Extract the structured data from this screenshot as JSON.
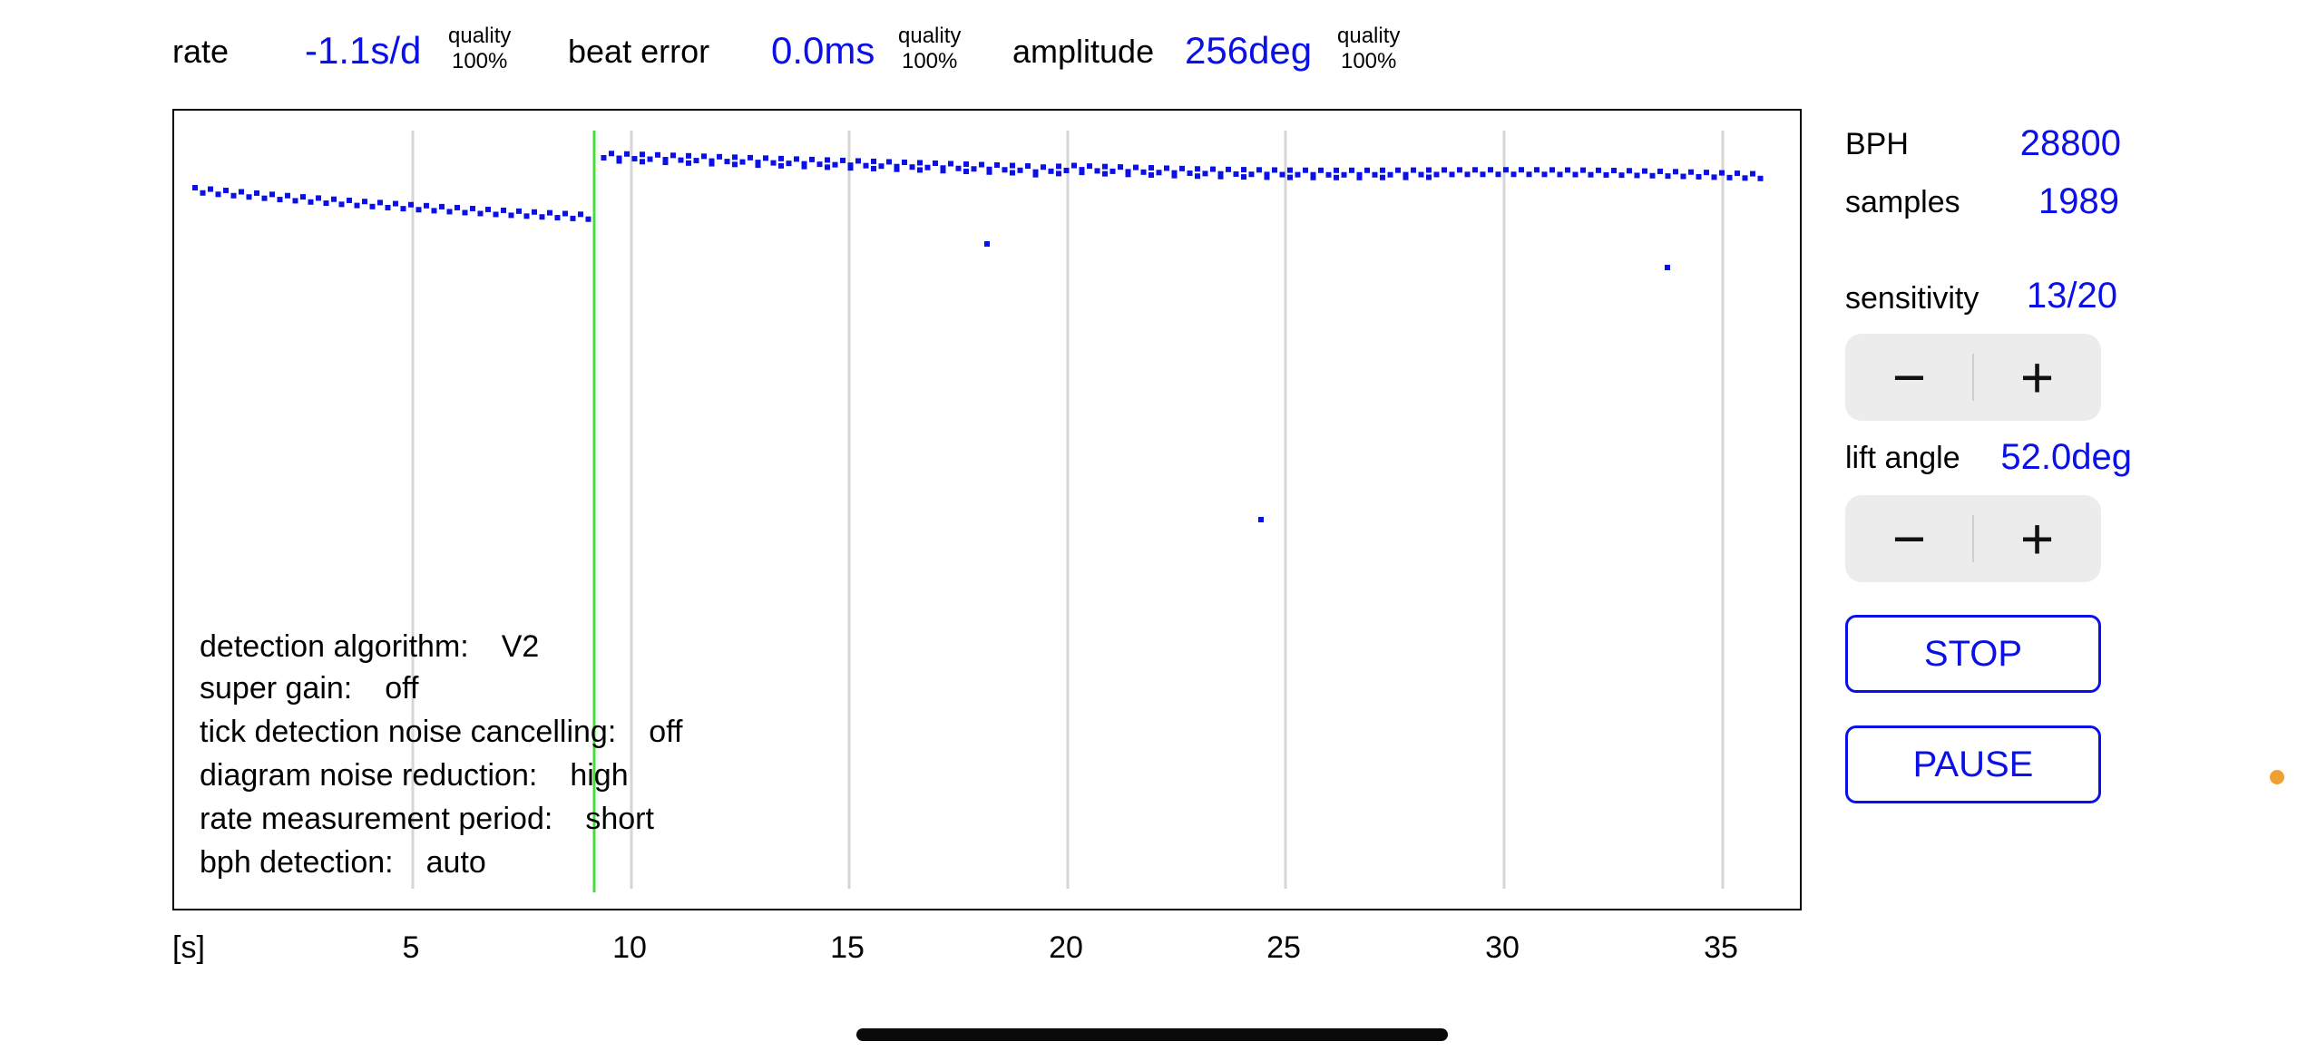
{
  "stats": {
    "rate": {
      "label": "rate",
      "value": "-1.1s/d",
      "quality_label": "quality",
      "quality_value": "100%"
    },
    "beat_error": {
      "label": "beat error",
      "value": "0.0ms",
      "quality_label": "quality",
      "quality_value": "100%"
    },
    "amplitude": {
      "label": "amplitude",
      "value": "256deg",
      "quality_label": "quality",
      "quality_value": "100%"
    }
  },
  "chart": {
    "x_unit": "[s]",
    "x_ticks": [
      "5",
      "10",
      "15",
      "20",
      "25",
      "30",
      "35"
    ],
    "info": [
      {
        "label": "detection algorithm:",
        "value": "V2"
      },
      {
        "label": "super gain:",
        "value": "off"
      },
      {
        "label": "tick detection noise cancelling:",
        "value": "off"
      },
      {
        "label": "diagram noise reduction:",
        "value": "high"
      },
      {
        "label": "rate measurement period:",
        "value": "short"
      },
      {
        "label": "bph detection:",
        "value": "auto"
      }
    ],
    "colors": {
      "dots": "#0a10e6",
      "cursor": "#44e03a",
      "grid": "#d6d6d6"
    }
  },
  "panel": {
    "bph_label": "BPH",
    "bph_value": "28800",
    "samples_label": "samples",
    "samples_value": "1989",
    "sensitivity_label": "sensitivity",
    "sensitivity_value": "13/20",
    "lift_angle_label": "lift angle",
    "lift_angle_value": "52.0deg",
    "minus": "−",
    "plus": "+",
    "stop_label": "STOP",
    "pause_label": "PAUSE"
  }
}
